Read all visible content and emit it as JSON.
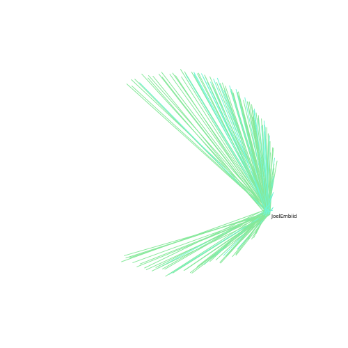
{
  "graph": {
    "type": "radial-edge-bundle",
    "center_node": {
      "label": "JoelEmbiid"
    },
    "colors": {
      "edge_green": "#86e89a",
      "edge_cyan": "#6ff5d6",
      "background": "#ffffff",
      "label": "#000000"
    },
    "edge_count": 120
  }
}
